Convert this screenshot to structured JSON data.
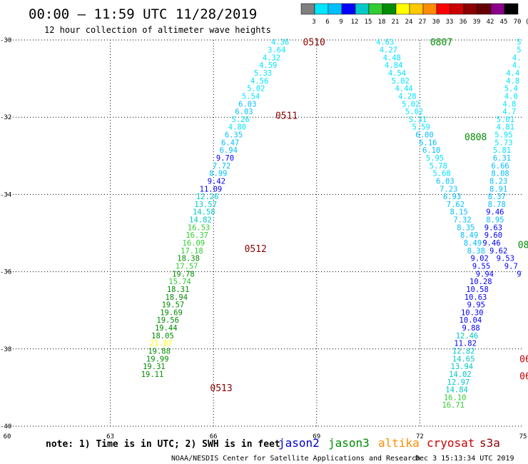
{
  "header": {
    "title": "00:00 – 11:59 UTC 11/28/2019",
    "subtitle": "12 hour collection of altimeter wave heights"
  },
  "colorbar": {
    "values": [
      "3",
      "6",
      "9",
      "12",
      "15",
      "18",
      "21",
      "24",
      "27",
      "30",
      "33",
      "36",
      "39",
      "42",
      "45",
      "70"
    ],
    "unit": "(ft)",
    "colors": [
      "#7f7f7f",
      "#00e5ff",
      "#00bfff",
      "#0000ff",
      "#00c8c8",
      "#33cc33",
      "#008c00",
      "#ffff00",
      "#ffc800",
      "#ff8c00",
      "#ff0000",
      "#cc0000",
      "#8b0000",
      "#660000",
      "#8b008b",
      "#000000"
    ]
  },
  "note": "note: 1) Time is in UTC; 2) SWH is in feet",
  "satellites": [
    {
      "name": "jason2",
      "color": "#0000cc"
    },
    {
      "name": "jason3",
      "color": "#008c00"
    },
    {
      "name": "altika",
      "color": "#ff8c00"
    },
    {
      "name": "cryosat",
      "color": "#cc0000"
    },
    {
      "name": "s3a",
      "color": "#8b0000"
    }
  ],
  "footer": {
    "credit": "NOAA/NESDIS Center for Satellite Applications and Research",
    "timestamp": "Dec  3 15:13:34 UTC 2019"
  },
  "chart_data": {
    "type": "scatter",
    "xlim": [
      60,
      75
    ],
    "ylim": [
      -40,
      -30
    ],
    "xticks": [
      60,
      63,
      66,
      69,
      72,
      75
    ],
    "yticks": [
      -30,
      -32,
      -34,
      -36,
      -38,
      -40
    ],
    "grid": true,
    "time_labels": [
      {
        "text": "0510",
        "x": 68.6,
        "y": -30.05,
        "color": "#8b0000"
      },
      {
        "text": "0511",
        "x": 67.8,
        "y": -31.95,
        "color": "#8b0000"
      },
      {
        "text": "0512",
        "x": 66.9,
        "y": -35.4,
        "color": "#8b0000"
      },
      {
        "text": "0513",
        "x": 65.9,
        "y": -39.0,
        "color": "#8b0000"
      },
      {
        "text": "0807",
        "x": 72.3,
        "y": -30.05,
        "color": "#008c00"
      },
      {
        "text": "0808",
        "x": 73.3,
        "y": -32.5,
        "color": "#008c00"
      },
      {
        "text": "08",
        "x": 74.85,
        "y": -35.3,
        "color": "#008c00"
      },
      {
        "text": "062",
        "x": 74.9,
        "y": -38.25,
        "color": "#cc0000"
      },
      {
        "text": "062",
        "x": 74.9,
        "y": -38.7,
        "color": "#cc0000"
      }
    ],
    "series": [
      {
        "name": "jason3",
        "points": [
          {
            "x": 68.2,
            "y": -30.05,
            "v": "4.36"
          },
          {
            "x": 68.1,
            "y": -30.25,
            "v": "3.64"
          },
          {
            "x": 67.95,
            "y": -30.45,
            "v": "4.32"
          },
          {
            "x": 67.85,
            "y": -30.65,
            "v": "4.59"
          },
          {
            "x": 67.7,
            "y": -30.85,
            "v": "5.33"
          },
          {
            "x": 67.6,
            "y": -31.05,
            "v": "4.56"
          },
          {
            "x": 67.5,
            "y": -31.25,
            "v": "5.02"
          },
          {
            "x": 67.35,
            "y": -31.45,
            "v": "5.54"
          },
          {
            "x": 67.25,
            "y": -31.65,
            "v": "6.03"
          },
          {
            "x": 67.15,
            "y": -31.85,
            "v": "6.03"
          },
          {
            "x": 67.05,
            "y": -32.05,
            "v": "5.26"
          },
          {
            "x": 66.95,
            "y": -32.25,
            "v": "4.80"
          },
          {
            "x": 66.85,
            "y": -32.45,
            "v": "6.35"
          },
          {
            "x": 66.75,
            "y": -32.65,
            "v": "6.47"
          },
          {
            "x": 66.7,
            "y": -32.85,
            "v": "6.94"
          },
          {
            "x": 66.6,
            "y": -33.05,
            "v": "9.70"
          },
          {
            "x": 66.5,
            "y": -33.25,
            "v": "7.72"
          },
          {
            "x": 66.4,
            "y": -33.45,
            "v": "8.99"
          },
          {
            "x": 66.35,
            "y": -33.65,
            "v": "9.42"
          },
          {
            "x": 66.25,
            "y": -33.85,
            "v": "11.09"
          },
          {
            "x": 66.15,
            "y": -34.05,
            "v": "12.26"
          },
          {
            "x": 66.1,
            "y": -34.25,
            "v": "13.57"
          },
          {
            "x": 66.05,
            "y": -34.45,
            "v": "14.58"
          },
          {
            "x": 65.95,
            "y": -34.65,
            "v": "14.82"
          },
          {
            "x": 65.9,
            "y": -34.85,
            "v": "16.53"
          },
          {
            "x": 65.85,
            "y": -35.05,
            "v": "16.37"
          },
          {
            "x": 65.75,
            "y": -35.25,
            "v": "16.09"
          },
          {
            "x": 65.7,
            "y": -35.45,
            "v": "17.18"
          },
          {
            "x": 65.6,
            "y": -35.65,
            "v": "18.38"
          },
          {
            "x": 65.55,
            "y": -35.85,
            "v": "17.57"
          },
          {
            "x": 65.45,
            "y": -36.05,
            "v": "19.78"
          },
          {
            "x": 65.35,
            "y": -36.25,
            "v": "15.74"
          },
          {
            "x": 65.3,
            "y": -36.45,
            "v": "18.31"
          },
          {
            "x": 65.25,
            "y": -36.65,
            "v": "18.94"
          },
          {
            "x": 65.15,
            "y": -36.85,
            "v": "19.57"
          },
          {
            "x": 65.1,
            "y": -37.05,
            "v": "19.69"
          },
          {
            "x": 65.0,
            "y": -37.25,
            "v": "19.56"
          },
          {
            "x": 64.95,
            "y": -37.45,
            "v": "19.44"
          },
          {
            "x": 64.85,
            "y": -37.65,
            "v": "18.05"
          },
          {
            "x": 64.8,
            "y": -37.85,
            "v": "21.07"
          },
          {
            "x": 64.75,
            "y": -38.05,
            "v": "19.88"
          },
          {
            "x": 64.7,
            "y": -38.25,
            "v": "19.99"
          },
          {
            "x": 64.6,
            "y": -38.45,
            "v": "19.31"
          },
          {
            "x": 64.55,
            "y": -38.65,
            "v": "19.11"
          }
        ]
      },
      {
        "name": "jason2",
        "points": [
          {
            "x": 71.25,
            "y": -30.05,
            "v": "4.63"
          },
          {
            "x": 71.35,
            "y": -30.25,
            "v": "4.27"
          },
          {
            "x": 71.45,
            "y": -30.45,
            "v": "4.48"
          },
          {
            "x": 71.5,
            "y": -30.65,
            "v": "4.84"
          },
          {
            "x": 71.6,
            "y": -30.85,
            "v": "4.54"
          },
          {
            "x": 71.7,
            "y": -31.05,
            "v": "5.02"
          },
          {
            "x": 71.8,
            "y": -31.25,
            "v": "4.44"
          },
          {
            "x": 71.9,
            "y": -31.45,
            "v": "4.28"
          },
          {
            "x": 72.0,
            "y": -31.65,
            "v": "5.02"
          },
          {
            "x": 72.1,
            "y": -31.85,
            "v": "5.02"
          },
          {
            "x": 72.2,
            "y": -32.05,
            "v": "5.31"
          },
          {
            "x": 72.3,
            "y": -32.25,
            "v": "5.59"
          },
          {
            "x": 72.4,
            "y": -32.45,
            "v": "6.00"
          },
          {
            "x": 72.5,
            "y": -32.65,
            "v": "6.16"
          },
          {
            "x": 72.6,
            "y": -32.85,
            "v": "6.10"
          },
          {
            "x": 72.7,
            "y": -33.05,
            "v": "5.95"
          },
          {
            "x": 72.8,
            "y": -33.25,
            "v": "5.78"
          },
          {
            "x": 72.9,
            "y": -33.45,
            "v": "5.68"
          },
          {
            "x": 73.0,
            "y": -33.65,
            "v": "6.03"
          },
          {
            "x": 73.1,
            "y": -33.85,
            "v": "7.23"
          },
          {
            "x": 73.2,
            "y": -34.05,
            "v": "6.93"
          },
          {
            "x": 73.3,
            "y": -34.25,
            "v": "7.62"
          },
          {
            "x": 73.4,
            "y": -34.45,
            "v": "8.15"
          },
          {
            "x": 73.5,
            "y": -34.65,
            "v": "7.32"
          },
          {
            "x": 73.6,
            "y": -34.85,
            "v": "8.35"
          },
          {
            "x": 73.7,
            "y": -35.05,
            "v": "8.49"
          },
          {
            "x": 73.8,
            "y": -35.25,
            "v": "8.49"
          },
          {
            "x": 73.9,
            "y": -35.45,
            "v": "8.38"
          },
          {
            "x": 74.0,
            "y": -35.65,
            "v": "9.02"
          },
          {
            "x": 74.05,
            "y": -35.85,
            "v": "9.55"
          },
          {
            "x": 74.15,
            "y": -36.05,
            "v": "9.94"
          },
          {
            "x": 74.1,
            "y": -36.25,
            "v": "10.28"
          },
          {
            "x": 74.0,
            "y": -36.45,
            "v": "10.58"
          },
          {
            "x": 73.95,
            "y": -36.65,
            "v": "10.63"
          },
          {
            "x": 73.9,
            "y": -36.85,
            "v": "9.95"
          },
          {
            "x": 73.85,
            "y": -37.05,
            "v": "10.30"
          },
          {
            "x": 73.8,
            "y": -37.25,
            "v": "10.04"
          },
          {
            "x": 73.75,
            "y": -37.45,
            "v": "9.88"
          },
          {
            "x": 73.7,
            "y": -37.65,
            "v": "12.46"
          },
          {
            "x": 73.65,
            "y": -37.85,
            "v": "11.82"
          },
          {
            "x": 73.6,
            "y": -38.05,
            "v": "12.82"
          },
          {
            "x": 73.6,
            "y": -38.25,
            "v": "14.65"
          },
          {
            "x": 73.55,
            "y": -38.45,
            "v": "13.94"
          },
          {
            "x": 73.5,
            "y": -38.65,
            "v": "14.02"
          },
          {
            "x": 73.45,
            "y": -38.85,
            "v": "12.97"
          },
          {
            "x": 73.4,
            "y": -39.05,
            "v": "14.84"
          },
          {
            "x": 73.35,
            "y": -39.25,
            "v": "16.10"
          },
          {
            "x": 73.3,
            "y": -39.45,
            "v": "16.71"
          }
        ]
      },
      {
        "name": "track-east",
        "points": [
          {
            "x": 74.95,
            "y": -30.05,
            "v": "5"
          },
          {
            "x": 74.95,
            "y": -30.25,
            "v": "5"
          },
          {
            "x": 74.95,
            "y": -30.45,
            "v": "4."
          },
          {
            "x": 74.95,
            "y": -30.65,
            "v": "4."
          },
          {
            "x": 74.9,
            "y": -30.85,
            "v": "4.4"
          },
          {
            "x": 74.9,
            "y": -31.05,
            "v": "4.8"
          },
          {
            "x": 74.85,
            "y": -31.25,
            "v": "5.4"
          },
          {
            "x": 74.85,
            "y": -31.45,
            "v": "4.0"
          },
          {
            "x": 74.8,
            "y": -31.65,
            "v": "4.8"
          },
          {
            "x": 74.8,
            "y": -31.85,
            "v": "4.7"
          },
          {
            "x": 74.75,
            "y": -32.05,
            "v": "5.01"
          },
          {
            "x": 74.75,
            "y": -32.25,
            "v": "4.81"
          },
          {
            "x": 74.7,
            "y": -32.45,
            "v": "5.95"
          },
          {
            "x": 74.7,
            "y": -32.65,
            "v": "5.73"
          },
          {
            "x": 74.65,
            "y": -32.85,
            "v": "5.81"
          },
          {
            "x": 74.65,
            "y": -33.05,
            "v": "6.31"
          },
          {
            "x": 74.6,
            "y": -33.25,
            "v": "6.66"
          },
          {
            "x": 74.6,
            "y": -33.45,
            "v": "8.08"
          },
          {
            "x": 74.55,
            "y": -33.65,
            "v": "8.23"
          },
          {
            "x": 74.55,
            "y": -33.85,
            "v": "8.91"
          },
          {
            "x": 74.5,
            "y": -34.05,
            "v": "8.37"
          },
          {
            "x": 74.5,
            "y": -34.25,
            "v": "8.78"
          },
          {
            "x": 74.45,
            "y": -34.45,
            "v": "9.46"
          },
          {
            "x": 74.45,
            "y": -34.65,
            "v": "8.95"
          },
          {
            "x": 74.4,
            "y": -34.85,
            "v": "9.63"
          },
          {
            "x": 74.4,
            "y": -35.05,
            "v": "9.60"
          },
          {
            "x": 74.35,
            "y": -35.25,
            "v": "9.46"
          },
          {
            "x": 74.55,
            "y": -35.45,
            "v": "9.62"
          },
          {
            "x": 74.75,
            "y": -35.65,
            "v": "9.53"
          },
          {
            "x": 74.85,
            "y": -35.85,
            "v": "9.7"
          },
          {
            "x": 74.95,
            "y": -36.05,
            "v": "9"
          }
        ]
      }
    ]
  }
}
